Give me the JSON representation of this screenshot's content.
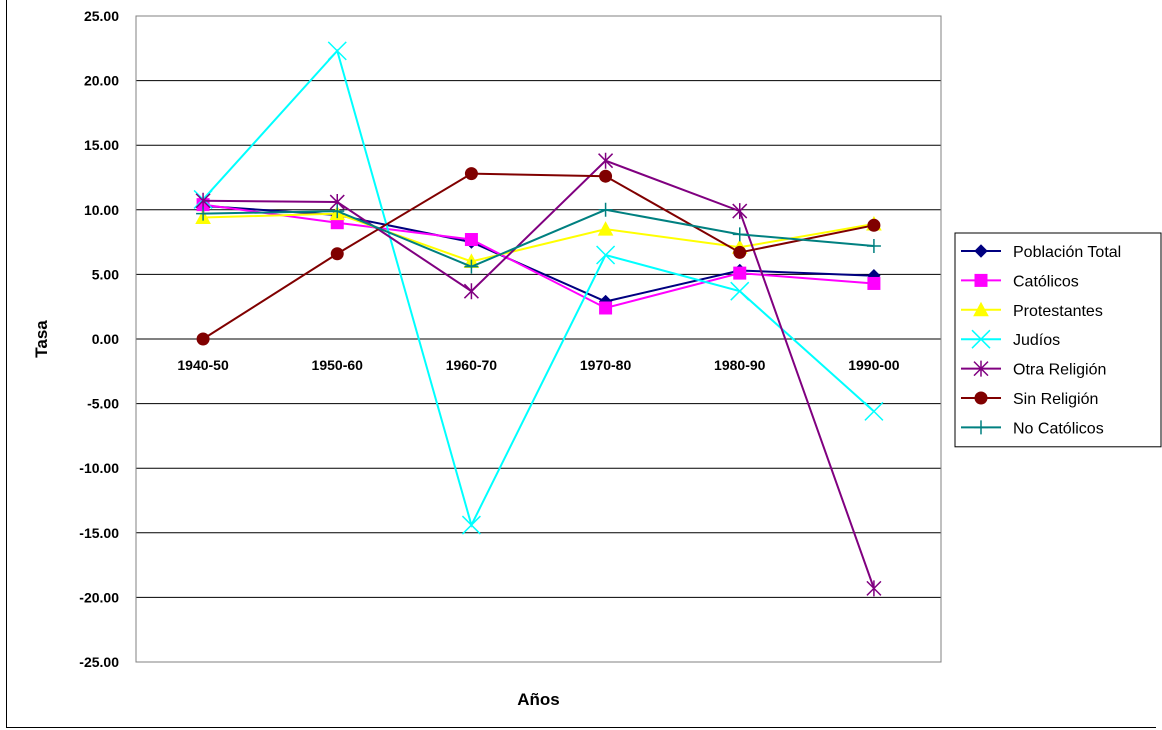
{
  "chart_data": {
    "type": "line",
    "title": "",
    "xlabel": "Años",
    "ylabel": "Tasa",
    "ylim": [
      -25,
      25
    ],
    "y_tick_step": 5,
    "y_tick_labels": [
      "25.00",
      "20.00",
      "15.00",
      "10.00",
      "5.00",
      "0.00",
      "-5.00",
      "-10.00",
      "-15.00",
      "-20.00",
      "-25.00"
    ],
    "grid": true,
    "legend_position": "right",
    "categories": [
      "1940-50",
      "1950-60",
      "1960-70",
      "1970-80",
      "1980-90",
      "1990-00"
    ],
    "series": [
      {
        "name": "Población Total",
        "color": "#000080",
        "marker": "diamond",
        "values": [
          10.3,
          9.6,
          7.5,
          2.9,
          5.3,
          4.9
        ]
      },
      {
        "name": "Católicos",
        "color": "#FF00FF",
        "marker": "square",
        "values": [
          10.4,
          9.0,
          7.7,
          2.4,
          5.1,
          4.3
        ]
      },
      {
        "name": "Protestantes",
        "color": "#FFFF00",
        "marker": "triangle",
        "values": [
          9.4,
          9.7,
          6.0,
          8.5,
          7.1,
          8.9
        ]
      },
      {
        "name": "Judíos",
        "color": "#00FFFF",
        "marker": "x",
        "values": [
          10.8,
          22.3,
          -14.4,
          6.5,
          3.7,
          -5.6
        ]
      },
      {
        "name": "Otra Religión",
        "color": "#800080",
        "marker": "star",
        "values": [
          10.7,
          10.6,
          3.7,
          13.8,
          9.9,
          -19.3
        ]
      },
      {
        "name": "Sin Religión",
        "color": "#800000",
        "marker": "circle",
        "values": [
          0.0,
          6.6,
          12.8,
          12.6,
          6.7,
          8.8
        ]
      },
      {
        "name": "No Católicos",
        "color": "#008080",
        "marker": "plus",
        "values": [
          9.7,
          9.9,
          5.6,
          10.0,
          8.1,
          7.2
        ]
      }
    ]
  }
}
